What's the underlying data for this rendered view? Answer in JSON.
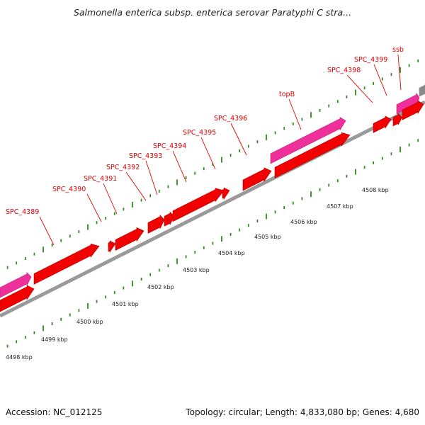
{
  "title": "Salmonella enterica subsp. enterica serovar Paratyphi C stra...",
  "footer": {
    "accession": "Accession: NC_012125",
    "summary": "Topology: circular; Length: 4,833,080 bp; Genes: 4,680"
  },
  "colors": {
    "gene": "#f20000",
    "gene_edge": "#b00000",
    "rna": "#f0309a",
    "rna_edge": "#c01a78",
    "other": "#8a8a8a",
    "backbone": "#9a9a9a",
    "tick": "#2e8b1e",
    "label": "#e00000",
    "leader": "#e00000"
  },
  "scale": {
    "unit": "kbp",
    "labels": [
      "4498 kbp",
      "4499 kbp",
      "4500 kbp",
      "4501 kbp",
      "4502 kbp",
      "4503 kbp",
      "4504 kbp",
      "4505 kbp",
      "4506 kbp",
      "4507 kbp",
      "4508 kbp"
    ]
  },
  "gene_labels": [
    "SPC_4389",
    "SPC_4390",
    "SPC_4391",
    "SPC_4392",
    "SPC_4393",
    "SPC_4394",
    "SPC_4395",
    "SPC_4396",
    "topB",
    "SPC_4398",
    "SPC_4399",
    "ssb"
  ]
}
